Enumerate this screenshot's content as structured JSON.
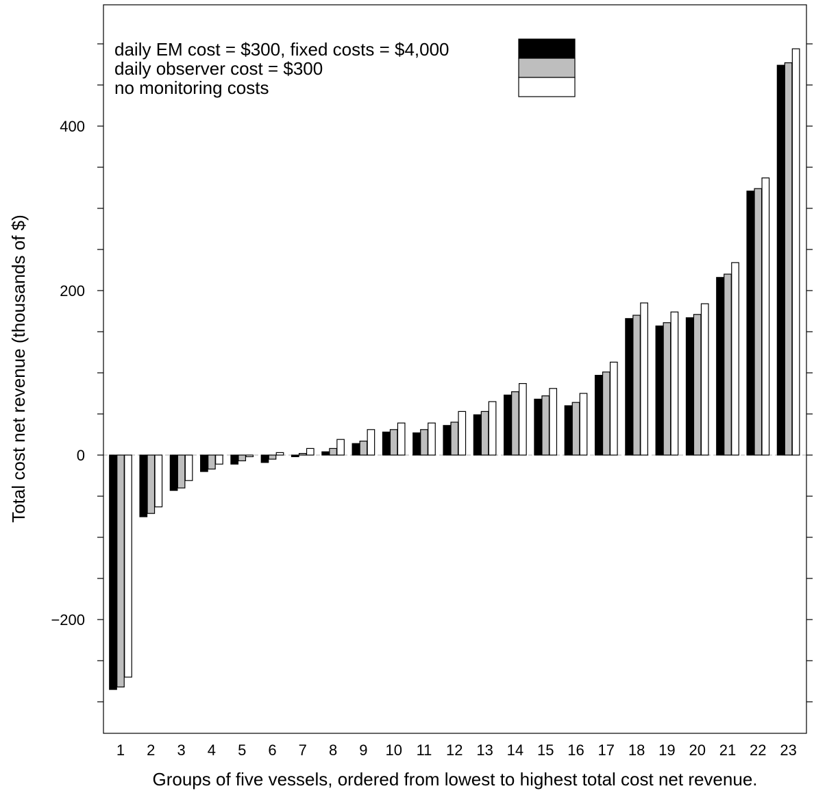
{
  "chart_data": {
    "type": "bar",
    "title": "",
    "xlabel": "Groups of five vessels, ordered from lowest to highest total cost net revenue.",
    "ylabel": "Total cost net revenue (thousands of $)",
    "ylim": [
      -340,
      550
    ],
    "yticks": [
      -200,
      0,
      200,
      400
    ],
    "ytick_labels": [
      "−200",
      "0",
      "200",
      "400"
    ],
    "grid": false,
    "legend_position": "top",
    "categories": [
      "1",
      "2",
      "3",
      "4",
      "5",
      "6",
      "7",
      "8",
      "9",
      "10",
      "11",
      "12",
      "13",
      "14",
      "15",
      "16",
      "17",
      "18",
      "19",
      "20",
      "21",
      "22",
      "23"
    ],
    "series": [
      {
        "name": "daily EM cost = $300, fixed costs = $4,000",
        "color": "#000000",
        "values": [
          -285,
          -75,
          -43,
          -20,
          -11,
          -9,
          -2,
          4,
          14,
          28,
          27,
          36,
          49,
          73,
          68,
          60,
          97,
          166,
          157,
          167,
          216,
          321,
          474
        ]
      },
      {
        "name": "daily observer cost = $300",
        "color": "#bebebe",
        "values": [
          -282,
          -71,
          -40,
          -17,
          -7,
          -5,
          2,
          8,
          17,
          31,
          31,
          40,
          53,
          77,
          72,
          64,
          101,
          170,
          161,
          171,
          220,
          324,
          477
        ]
      },
      {
        "name": "no monitoring costs",
        "color": "#ffffff",
        "values": [
          -270,
          -63,
          -31,
          -11,
          -2,
          3,
          8,
          19,
          31,
          39,
          39,
          53,
          65,
          87,
          81,
          75,
          113,
          185,
          174,
          184,
          234,
          337,
          494
        ]
      }
    ]
  }
}
